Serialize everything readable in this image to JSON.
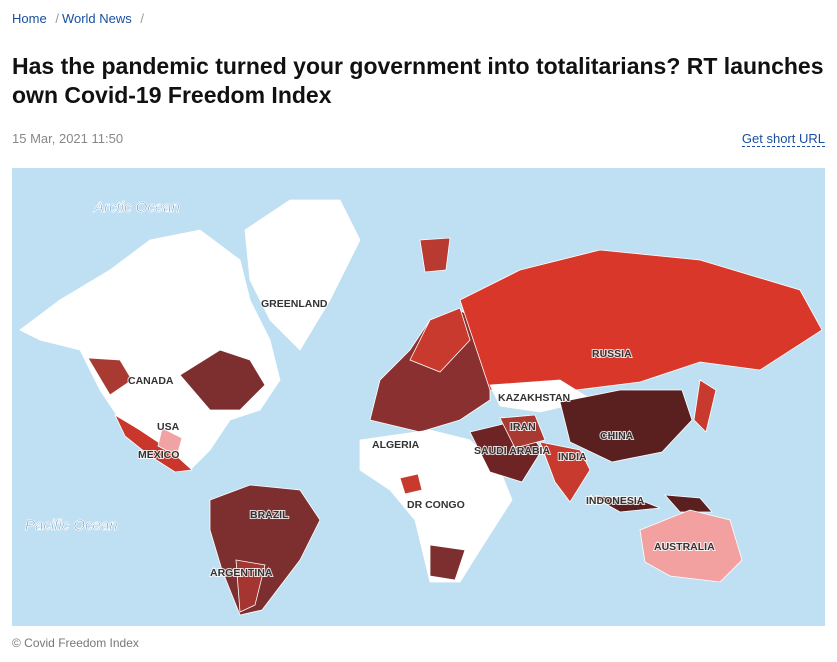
{
  "breadcrumb": [
    "Home",
    "World News"
  ],
  "separator": "/",
  "title": "Has the pandemic turned your government into totalitarians? RT launches own Covid-19 Freedom Index",
  "date": "15 Mar, 2021 11:50",
  "short_url": "Get short URL",
  "map": {
    "oceans": [
      "Arctic Ocean",
      "Pacific Ocean"
    ],
    "labels": [
      "GREENLAND",
      "CANADA",
      "USA",
      "MEXICO",
      "BRAZIL",
      "ARGENTINA",
      "ALGERIA",
      "DR CONGO",
      "KAZAKHSTAN",
      "RUSSIA",
      "CHINA",
      "IRAN",
      "SAUDI ARABIA",
      "INDIA",
      "INDONESIA",
      "AUSTRALIA"
    ]
  },
  "caption": "© Covid Freedom Index"
}
